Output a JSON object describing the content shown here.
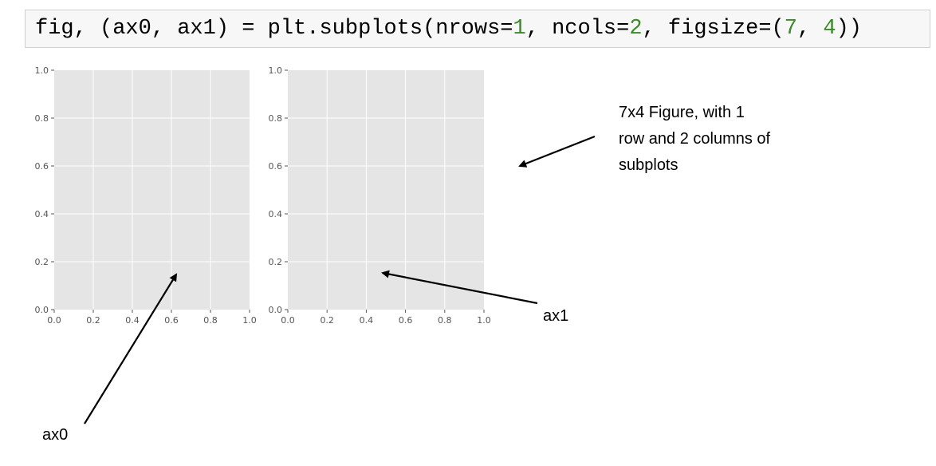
{
  "code": {
    "parts": [
      {
        "text": "fig, (ax0, ax1) = plt.subplots(nrows=",
        "kind": "plain"
      },
      {
        "text": "1",
        "kind": "num"
      },
      {
        "text": ", ncols=",
        "kind": "plain"
      },
      {
        "text": "2",
        "kind": "num"
      },
      {
        "text": ", figsize=(",
        "kind": "plain"
      },
      {
        "text": "7",
        "kind": "num"
      },
      {
        "text": ", ",
        "kind": "plain"
      },
      {
        "text": "4",
        "kind": "num"
      },
      {
        "text": "))",
        "kind": "plain"
      }
    ]
  },
  "axes": [
    {
      "name": "ax0",
      "x_ticks": [
        "0.0",
        "0.2",
        "0.4",
        "0.6",
        "0.8",
        "1.0"
      ],
      "y_ticks": [
        "0.0",
        "0.2",
        "0.4",
        "0.6",
        "0.8",
        "1.0"
      ]
    },
    {
      "name": "ax1",
      "x_ticks": [
        "0.0",
        "0.2",
        "0.4",
        "0.6",
        "0.8",
        "1.0"
      ],
      "y_ticks": [
        "0.0",
        "0.2",
        "0.4",
        "0.6",
        "0.8",
        "1.0"
      ]
    }
  ],
  "annotations": {
    "figure_lines": [
      "7x4 Figure, with 1",
      "row and 2 columns of",
      "subplots"
    ],
    "ax1_label": "ax1",
    "ax0_label": "ax0"
  },
  "colors": {
    "axes_bg": "#e5e5e5",
    "grid": "#ffffff",
    "number_literal": "#3a8a28",
    "arrow": "#000000"
  }
}
